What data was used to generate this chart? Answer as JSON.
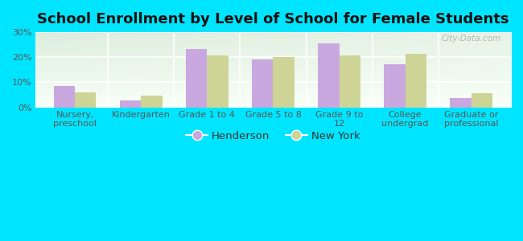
{
  "title": "School Enrollment by Level of School for Female Students",
  "categories": [
    "Nursery,\npreschool",
    "Kindergarten",
    "Grade 1 to 4",
    "Grade 5 to 8",
    "Grade 9 to\n12",
    "College\nundergrad",
    "Graduate or\nprofessional"
  ],
  "henderson": [
    8.5,
    2.8,
    23.2,
    19.0,
    25.5,
    17.2,
    3.8
  ],
  "new_york": [
    6.0,
    4.8,
    20.8,
    20.2,
    20.6,
    21.5,
    5.8
  ],
  "henderson_color": "#c9a8e0",
  "new_york_color": "#cdd496",
  "background_outer": "#00e5ff",
  "background_inner_top_left": "#ddeedd",
  "background_inner_bottom_right": "#f8fff8",
  "ylim": [
    0,
    30
  ],
  "yticks": [
    0,
    10,
    20,
    30
  ],
  "ytick_labels": [
    "0%",
    "10%",
    "20%",
    "30%"
  ],
  "watermark": "City-Data.com",
  "legend_henderson": "Henderson",
  "legend_new_york": "New York",
  "title_fontsize": 13,
  "tick_fontsize": 8,
  "legend_fontsize": 9.5,
  "bar_width": 0.32
}
